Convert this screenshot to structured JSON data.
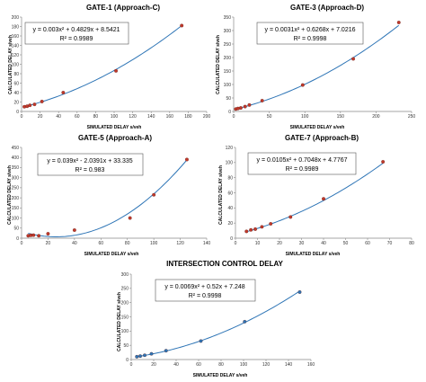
{
  "chart_data": [
    {
      "type": "scatter",
      "title": "GATE-1 (Approach-C)",
      "xlabel": "SIMULATED DELAY s/veh",
      "ylabel": "CALCULATED DELAY s/veh",
      "xlim": [
        0,
        200
      ],
      "ylim": [
        0,
        200
      ],
      "xticks": [
        "0",
        "20",
        "40",
        "60",
        "80",
        "100",
        "120",
        "140",
        "160",
        "180",
        "200"
      ],
      "yticks": [
        "0",
        "20",
        "40",
        "60",
        "80",
        "100",
        "120",
        "140",
        "160",
        "180",
        "200"
      ],
      "equation": "y = 0.003x² + 0.4829x + 8.5421",
      "r2": "R² = 0.9989",
      "trend": {
        "a": 0.003,
        "b": 0.4829,
        "c": 8.5421
      },
      "marker_color": "#c0392b",
      "line_color": "#2e75b6",
      "grid": false,
      "points": [
        [
          3,
          10
        ],
        [
          6,
          11
        ],
        [
          9,
          13
        ],
        [
          14,
          15
        ],
        [
          22,
          21
        ],
        [
          45,
          40
        ],
        [
          102,
          86
        ],
        [
          173,
          182
        ]
      ]
    },
    {
      "type": "scatter",
      "title": "GATE-3 (Approach-D)",
      "xlabel": "SIMULATED DELAY s/veh",
      "ylabel": "CALCULATED DELAY s/veh",
      "xlim": [
        0,
        250
      ],
      "ylim": [
        0,
        350
      ],
      "xticks": [
        "0",
        "50",
        "100",
        "150",
        "200",
        "250"
      ],
      "yticks": [
        "0",
        "50",
        "100",
        "150",
        "200",
        "250",
        "300",
        "350"
      ],
      "equation": "y = 0.0031x² + 0.6268x + 7.0216",
      "r2": "R² = 0.9998",
      "trend": {
        "a": 0.0031,
        "b": 0.6268,
        "c": 7.0216
      },
      "marker_color": "#c0392b",
      "line_color": "#2e75b6",
      "grid": false,
      "points": [
        [
          3,
          9
        ],
        [
          6,
          11
        ],
        [
          10,
          13
        ],
        [
          16,
          18
        ],
        [
          22,
          24
        ],
        [
          40,
          40
        ],
        [
          97,
          98
        ],
        [
          168,
          195
        ],
        [
          232,
          330
        ]
      ]
    },
    {
      "type": "scatter",
      "title": "GATE-5 (Approach-A)",
      "xlabel": "SIMULATED DELAY s/veh",
      "ylabel": "CALCULATED DELAY s/veh",
      "xlim": [
        0,
        140
      ],
      "ylim": [
        0,
        450
      ],
      "xticks": [
        "0",
        "20",
        "40",
        "60",
        "80",
        "100",
        "120",
        "140"
      ],
      "yticks": [
        "0",
        "50",
        "100",
        "150",
        "200",
        "250",
        "300",
        "350",
        "400",
        "450"
      ],
      "equation": "y = 0.039x² - 2.0391x + 33.335",
      "r2": "R² = 0.983",
      "trend": {
        "a": 0.039,
        "b": -2.0391,
        "c": 33.335
      },
      "marker_color": "#c0392b",
      "line_color": "#2e75b6",
      "grid": false,
      "points": [
        [
          5,
          12
        ],
        [
          7,
          14
        ],
        [
          9,
          15
        ],
        [
          13,
          12
        ],
        [
          20,
          22
        ],
        [
          40,
          40
        ],
        [
          82,
          100
        ],
        [
          100,
          215
        ],
        [
          125,
          390
        ]
      ]
    },
    {
      "type": "scatter",
      "title": "GATE-7 (Approach-B)",
      "xlabel": "SIMULATED DELAY s/veh",
      "ylabel": "CALCULATED DELAY s/veh",
      "xlim": [
        0,
        80
      ],
      "ylim": [
        0,
        120
      ],
      "xticks": [
        "0",
        "10",
        "20",
        "30",
        "40",
        "50",
        "60",
        "70",
        "80"
      ],
      "yticks": [
        "0",
        "20",
        "40",
        "60",
        "80",
        "100",
        "120"
      ],
      "equation": "y = 0.0105x² + 0.7048x + 4.7767",
      "r2": "R² = 0.9989",
      "trend": {
        "a": 0.0105,
        "b": 0.7048,
        "c": 4.7767
      },
      "marker_color": "#c0392b",
      "line_color": "#2e75b6",
      "grid": false,
      "points": [
        [
          5,
          9
        ],
        [
          7,
          11
        ],
        [
          9,
          12
        ],
        [
          12,
          15
        ],
        [
          16,
          19
        ],
        [
          25,
          28
        ],
        [
          40,
          52
        ],
        [
          67,
          101
        ]
      ]
    },
    {
      "type": "scatter",
      "title": "INTERSECTION CONTROL DELAY",
      "xlabel": "SIMULATED DELAY s/veh",
      "ylabel": "CALCULATED DELAY s/veh",
      "xlim": [
        0,
        160
      ],
      "ylim": [
        0,
        300
      ],
      "xticks": [
        "0",
        "20",
        "40",
        "60",
        "80",
        "100",
        "120",
        "140",
        "160"
      ],
      "yticks": [
        "0",
        "50",
        "100",
        "150",
        "200",
        "250",
        "300"
      ],
      "equation": "y = 0.0069x² + 0.52x + 7.248",
      "r2": "R² = 0.9998",
      "trend": {
        "a": 0.0069,
        "b": 0.52,
        "c": 7.248
      },
      "marker_color": "#2e75b6",
      "line_color": "#2e75b6",
      "grid": false,
      "points": [
        [
          5,
          10
        ],
        [
          8,
          12
        ],
        [
          12,
          15
        ],
        [
          18,
          20
        ],
        [
          31,
          31
        ],
        [
          62,
          65
        ],
        [
          101,
          133
        ],
        [
          150,
          237
        ]
      ]
    }
  ]
}
